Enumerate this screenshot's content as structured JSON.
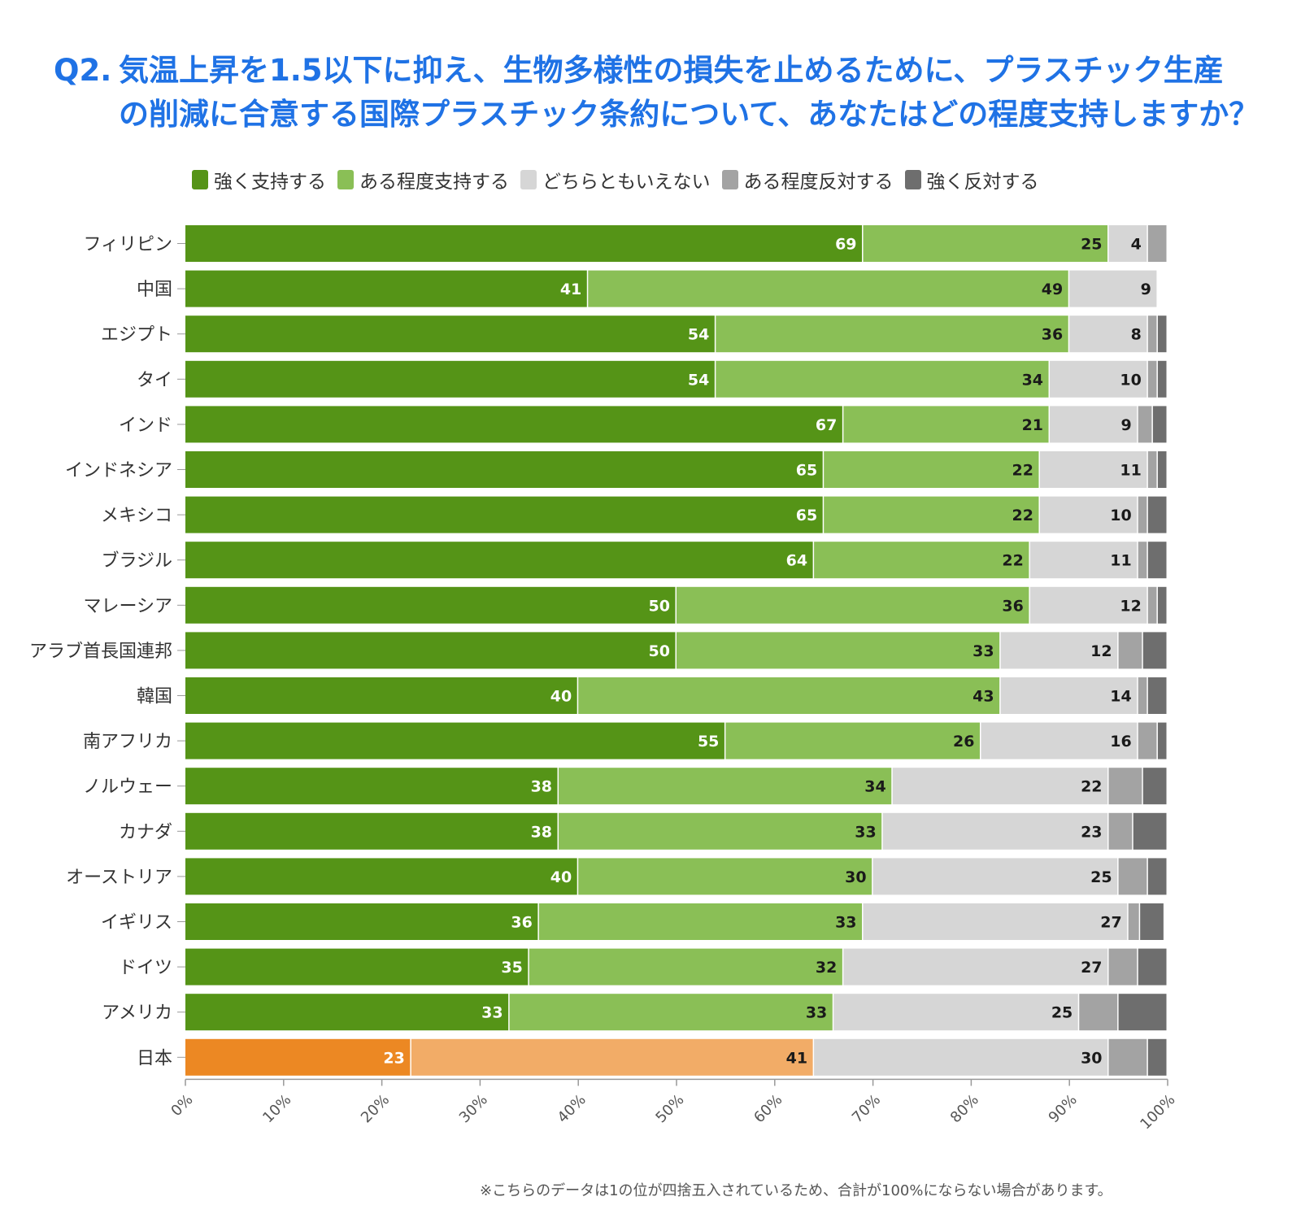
{
  "title": {
    "prefix": "Q2.",
    "line1": "気温上昇を1.5以下に抑え、生物多様性の損失を止めるために、プラスチック生産",
    "line2": "の削減に合意する国際プラスチック条約について、あなたはどの程度支持しますか？"
  },
  "footnote": "※こちらのデータは1の位が四捨五入されているため、合計が100%にならない場合があります。",
  "colors": {
    "strong_support": "#559417",
    "some_support": "#8abf56",
    "neutral": "#d6d6d6",
    "some_oppose": "#a3a3a3",
    "strong_oppose": "#6e6e6e",
    "japan_strong_support": "#ec8823",
    "japan_some_support": "#f2ac67"
  },
  "chart_data": {
    "type": "bar",
    "orientation": "horizontal",
    "stacked": true,
    "categories": [
      "フィリピン",
      "中国",
      "エジプト",
      "タイ",
      "インド",
      "インドネシア",
      "メキシコ",
      "ブラジル",
      "マレーシア",
      "アラブ首長国連邦",
      "韓国",
      "南アフリカ",
      "ノルウェー",
      "カナダ",
      "オーストリア",
      "イギリス",
      "ドイツ",
      "アメリカ",
      "日本"
    ],
    "series": [
      {
        "name": "強く支持する",
        "values": [
          69,
          41,
          54,
          54,
          67,
          65,
          65,
          64,
          50,
          50,
          40,
          55,
          38,
          38,
          40,
          36,
          35,
          33,
          23
        ]
      },
      {
        "name": "ある程度支持する",
        "values": [
          25,
          49,
          36,
          34,
          21,
          22,
          22,
          22,
          36,
          33,
          43,
          26,
          34,
          33,
          30,
          33,
          32,
          33,
          41
        ]
      },
      {
        "name": "どちらともいえない",
        "values": [
          4,
          9,
          8,
          10,
          9,
          11,
          10,
          11,
          12,
          12,
          14,
          16,
          22,
          23,
          25,
          27,
          27,
          25,
          30
        ]
      },
      {
        "name": "ある程度反対する",
        "values": [
          2,
          0,
          1,
          1,
          1.5,
          1,
          1,
          1,
          1,
          2.5,
          1,
          2,
          3.5,
          2.5,
          3,
          1.2,
          3,
          4,
          4
        ]
      },
      {
        "name": "強く反対する",
        "values": [
          0,
          0,
          1,
          1,
          1.5,
          1,
          2,
          2,
          1,
          2.5,
          2,
          1,
          2.5,
          3.5,
          2,
          2.5,
          3,
          5,
          2
        ]
      }
    ],
    "data_labels": {
      "strong_support": [
        "69",
        "41",
        "54",
        "54",
        "67",
        "65",
        "65",
        "64",
        "50",
        "50",
        "40",
        "55",
        "38",
        "38",
        "40",
        "36",
        "35",
        "33",
        "23"
      ],
      "some_support": [
        "25",
        "49",
        "36",
        "34",
        "21",
        "22",
        "22",
        "22",
        "36",
        "33",
        "43",
        "26",
        "34",
        "33",
        "30",
        "33",
        "32",
        "33",
        "41"
      ],
      "neutral": [
        "4",
        "9",
        "8",
        "10",
        "9",
        "11",
        "10",
        "11",
        "12",
        "12",
        "14",
        "16",
        "22",
        "23",
        "25",
        "27",
        "27",
        "25",
        "30"
      ]
    },
    "x_ticks": [
      "0%",
      "10%",
      "20%",
      "30%",
      "40%",
      "50%",
      "60%",
      "70%",
      "80%",
      "90%",
      "100%"
    ],
    "xlim": [
      0,
      100
    ],
    "highlight_category": "日本",
    "legend_position": "top",
    "grid": false
  }
}
